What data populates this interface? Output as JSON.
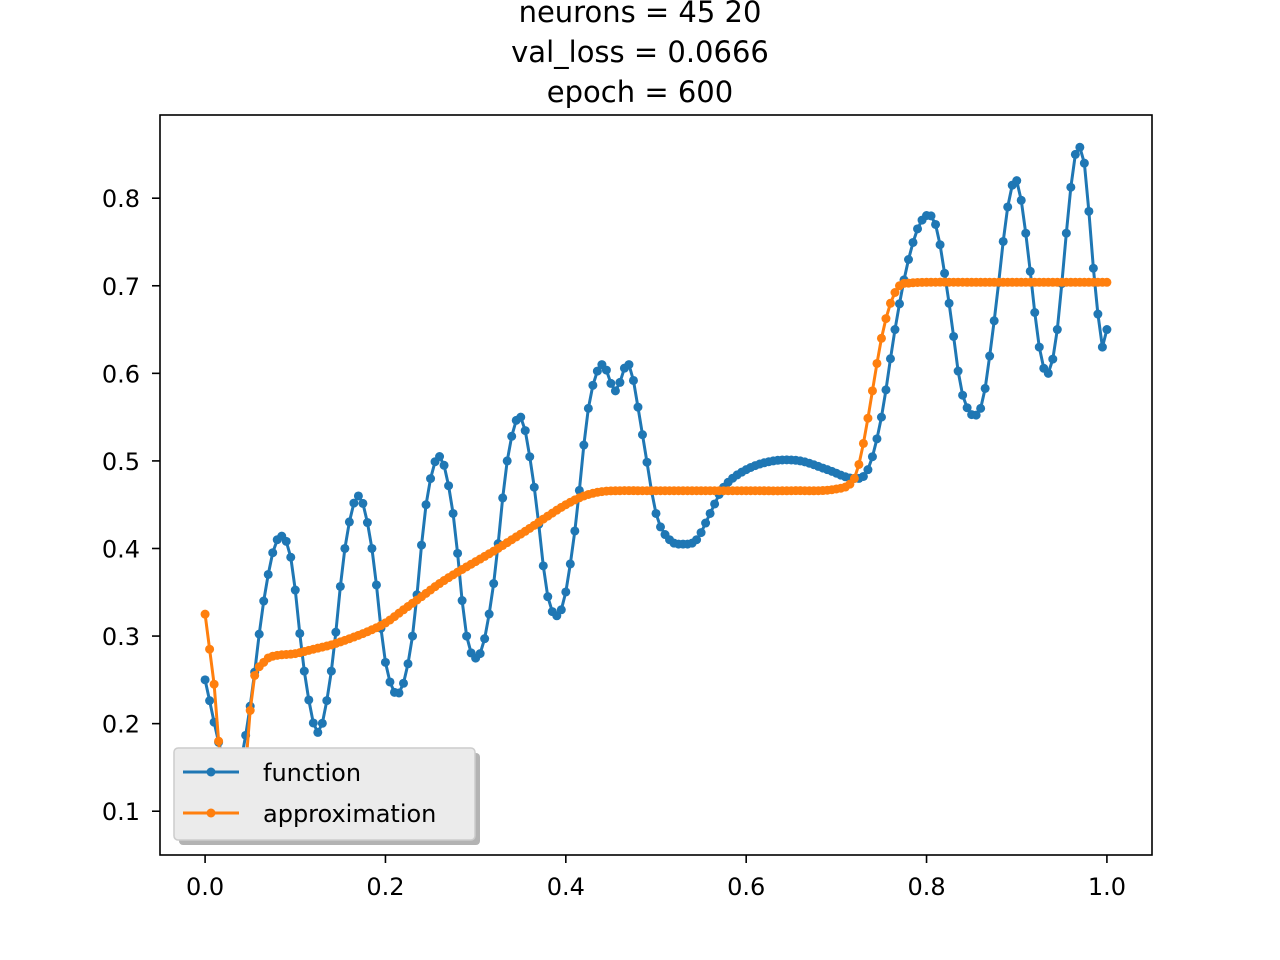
{
  "chart_data": {
    "type": "line",
    "title_lines": [
      "neurons = 45 20",
      "val_loss = 0.0666",
      "epoch = 600"
    ],
    "xlabel": "",
    "ylabel": "",
    "xlim": [
      -0.05,
      1.05
    ],
    "ylim": [
      0.05,
      0.895
    ],
    "x_ticks": [
      0.0,
      0.2,
      0.4,
      0.6,
      0.8,
      1.0
    ],
    "x_tick_labels": [
      "0.0",
      "0.2",
      "0.4",
      "0.6",
      "0.8",
      "1.0"
    ],
    "y_ticks": [
      0.1,
      0.2,
      0.3,
      0.4,
      0.5,
      0.6,
      0.7,
      0.8
    ],
    "y_tick_labels": [
      "0.1",
      "0.2",
      "0.3",
      "0.4",
      "0.5",
      "0.6",
      "0.7",
      "0.8"
    ],
    "grid": false,
    "legend_position": "lower-left",
    "n_points": 201,
    "x_range": [
      0.0,
      1.0
    ],
    "series": [
      {
        "name": "function",
        "color": "#1f77b4",
        "marker": "dot",
        "x": [
          0.0,
          0.02,
          0.035,
          0.05,
          0.065,
          0.08,
          0.095,
          0.11,
          0.125,
          0.14,
          0.155,
          0.17,
          0.185,
          0.2,
          0.215,
          0.23,
          0.245,
          0.26,
          0.275,
          0.29,
          0.305,
          0.32,
          0.335,
          0.35,
          0.365,
          0.38,
          0.395,
          0.41,
          0.425,
          0.44,
          0.455,
          0.47,
          0.485,
          0.5,
          0.515,
          0.53,
          0.545,
          0.56,
          0.575,
          0.6,
          0.63,
          0.66,
          0.69,
          0.72,
          0.735,
          0.75,
          0.765,
          0.78,
          0.795,
          0.81,
          0.825,
          0.84,
          0.86,
          0.875,
          0.89,
          0.9,
          0.91,
          0.925,
          0.935,
          0.945,
          0.955,
          0.965,
          0.975,
          0.985,
          0.995,
          1.0
        ],
        "y": [
          0.25,
          0.16,
          0.14,
          0.22,
          0.34,
          0.41,
          0.39,
          0.26,
          0.19,
          0.26,
          0.4,
          0.46,
          0.4,
          0.27,
          0.235,
          0.3,
          0.45,
          0.505,
          0.44,
          0.3,
          0.28,
          0.36,
          0.5,
          0.55,
          0.47,
          0.345,
          0.33,
          0.42,
          0.56,
          0.61,
          0.58,
          0.61,
          0.53,
          0.44,
          0.41,
          0.405,
          0.41,
          0.44,
          0.47,
          0.49,
          0.5,
          0.5,
          0.49,
          0.48,
          0.49,
          0.55,
          0.65,
          0.73,
          0.775,
          0.77,
          0.68,
          0.575,
          0.56,
          0.66,
          0.79,
          0.82,
          0.76,
          0.63,
          0.6,
          0.65,
          0.76,
          0.85,
          0.84,
          0.72,
          0.63,
          0.65
        ]
      },
      {
        "name": "approximation",
        "color": "#ff7f0e",
        "marker": "dot",
        "x": [
          0.0,
          0.005,
          0.01,
          0.015,
          0.02,
          0.025,
          0.03,
          0.035,
          0.04,
          0.045,
          0.05,
          0.055,
          0.06,
          0.065,
          0.07,
          0.08,
          0.1,
          0.12,
          0.14,
          0.16,
          0.18,
          0.2,
          0.22,
          0.24,
          0.26,
          0.28,
          0.3,
          0.32,
          0.34,
          0.36,
          0.38,
          0.4,
          0.42,
          0.44,
          0.46,
          0.48,
          0.5,
          0.55,
          0.6,
          0.65,
          0.7,
          0.72,
          0.73,
          0.74,
          0.75,
          0.76,
          0.77,
          0.78,
          0.8,
          0.85,
          0.9,
          0.95,
          1.0
        ],
        "y": [
          0.325,
          0.285,
          0.245,
          0.18,
          0.13,
          0.1,
          0.09,
          0.09,
          0.1,
          0.15,
          0.215,
          0.255,
          0.265,
          0.27,
          0.275,
          0.278,
          0.28,
          0.285,
          0.29,
          0.297,
          0.305,
          0.315,
          0.33,
          0.345,
          0.36,
          0.373,
          0.385,
          0.397,
          0.41,
          0.423,
          0.437,
          0.45,
          0.46,
          0.465,
          0.466,
          0.466,
          0.466,
          0.466,
          0.466,
          0.466,
          0.468,
          0.48,
          0.52,
          0.58,
          0.64,
          0.68,
          0.7,
          0.703,
          0.704,
          0.704,
          0.704,
          0.704,
          0.704
        ]
      }
    ]
  }
}
